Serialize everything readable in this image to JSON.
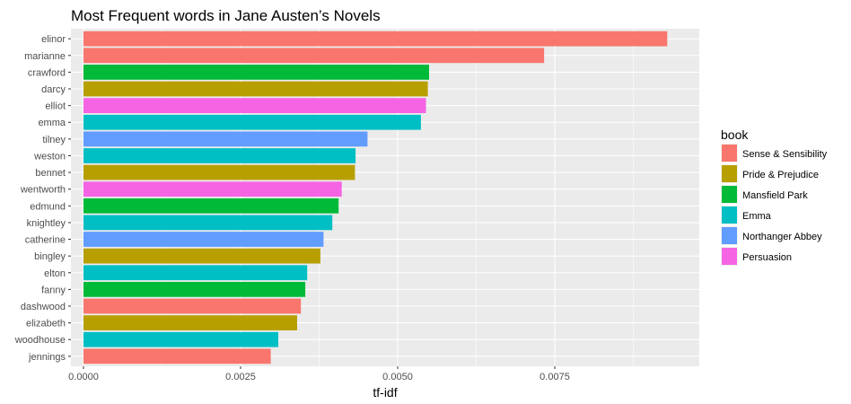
{
  "chart_data": {
    "type": "bar",
    "orientation": "horizontal",
    "title": "Most Frequent words in Jane Austen’s Novels",
    "xlabel": "tf-idf",
    "ylabel": "",
    "xlim": [
      -0.0002,
      0.0098
    ],
    "x_ticks": [
      0,
      0.0025,
      0.005,
      0.0075
    ],
    "x_tick_labels": [
      "0.0000",
      "0.0025",
      "0.0050",
      "0.0075"
    ],
    "grid": true,
    "legend": {
      "title": "book",
      "position": "right",
      "entries": [
        {
          "label": "Sense & Sensibility",
          "color": "#F8766D"
        },
        {
          "label": "Pride & Prejudice",
          "color": "#B79F00"
        },
        {
          "label": "Mansfield Park",
          "color": "#00BA38"
        },
        {
          "label": "Emma",
          "color": "#00BFC4"
        },
        {
          "label": "Northanger Abbey",
          "color": "#619CFF"
        },
        {
          "label": "Persuasion",
          "color": "#F564E3"
        }
      ]
    },
    "bars": [
      {
        "word": "elinor",
        "value": 0.00929,
        "book": "Sense & Sensibility"
      },
      {
        "word": "marianne",
        "value": 0.00733,
        "book": "Sense & Sensibility"
      },
      {
        "word": "crawford",
        "value": 0.0055,
        "book": "Mansfield Park"
      },
      {
        "word": "darcy",
        "value": 0.00548,
        "book": "Pride & Prejudice"
      },
      {
        "word": "elliot",
        "value": 0.00545,
        "book": "Persuasion"
      },
      {
        "word": "emma",
        "value": 0.00537,
        "book": "Emma"
      },
      {
        "word": "tilney",
        "value": 0.00452,
        "book": "Northanger Abbey"
      },
      {
        "word": "weston",
        "value": 0.00433,
        "book": "Emma"
      },
      {
        "word": "bennet",
        "value": 0.00432,
        "book": "Pride & Prejudice"
      },
      {
        "word": "wentworth",
        "value": 0.00411,
        "book": "Persuasion"
      },
      {
        "word": "edmund",
        "value": 0.00406,
        "book": "Mansfield Park"
      },
      {
        "word": "knightley",
        "value": 0.00396,
        "book": "Emma"
      },
      {
        "word": "catherine",
        "value": 0.00382,
        "book": "Northanger Abbey"
      },
      {
        "word": "bingley",
        "value": 0.00377,
        "book": "Pride & Prejudice"
      },
      {
        "word": "elton",
        "value": 0.00356,
        "book": "Emma"
      },
      {
        "word": "fanny",
        "value": 0.00353,
        "book": "Mansfield Park"
      },
      {
        "word": "dashwood",
        "value": 0.00346,
        "book": "Sense & Sensibility"
      },
      {
        "word": "elizabeth",
        "value": 0.0034,
        "book": "Pride & Prejudice"
      },
      {
        "word": "woodhouse",
        "value": 0.0031,
        "book": "Emma"
      },
      {
        "word": "jennings",
        "value": 0.00298,
        "book": "Sense & Sensibility"
      }
    ]
  }
}
